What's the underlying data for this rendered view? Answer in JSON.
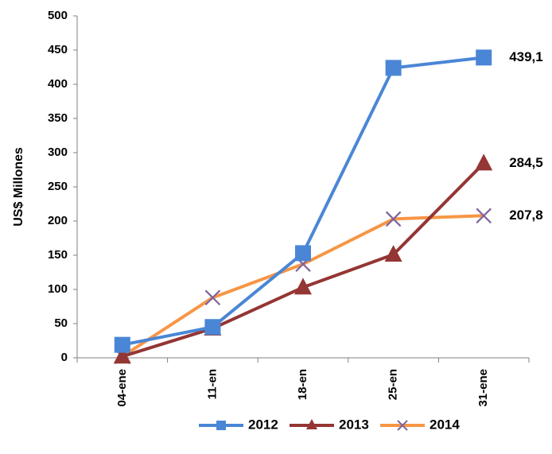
{
  "chart_data": {
    "type": "line",
    "title": "",
    "xlabel": "",
    "ylabel": "US$ Millones",
    "ylim": [
      0,
      500
    ],
    "yticks": [
      0,
      50,
      100,
      150,
      200,
      250,
      300,
      350,
      400,
      450,
      500
    ],
    "categories": [
      "04-ene",
      "11-en",
      "18-en",
      "25-en",
      "31-ene"
    ],
    "grid": false,
    "legend_position": "bottom",
    "series": [
      {
        "name": "2012",
        "color": "#4A86D5",
        "marker": "square",
        "values": [
          19,
          45,
          153,
          424,
          439.1
        ],
        "end_label": "439,1"
      },
      {
        "name": "2013",
        "color": "#943634",
        "marker": "triangle",
        "values": [
          2,
          43,
          103,
          151,
          284.5
        ],
        "end_label": "284,5"
      },
      {
        "name": "2014",
        "color": "#F79646",
        "marker": "x",
        "marker_color": "#7E649E",
        "values": [
          2,
          88,
          137,
          203,
          207.8
        ],
        "end_label": "207,8"
      }
    ]
  }
}
